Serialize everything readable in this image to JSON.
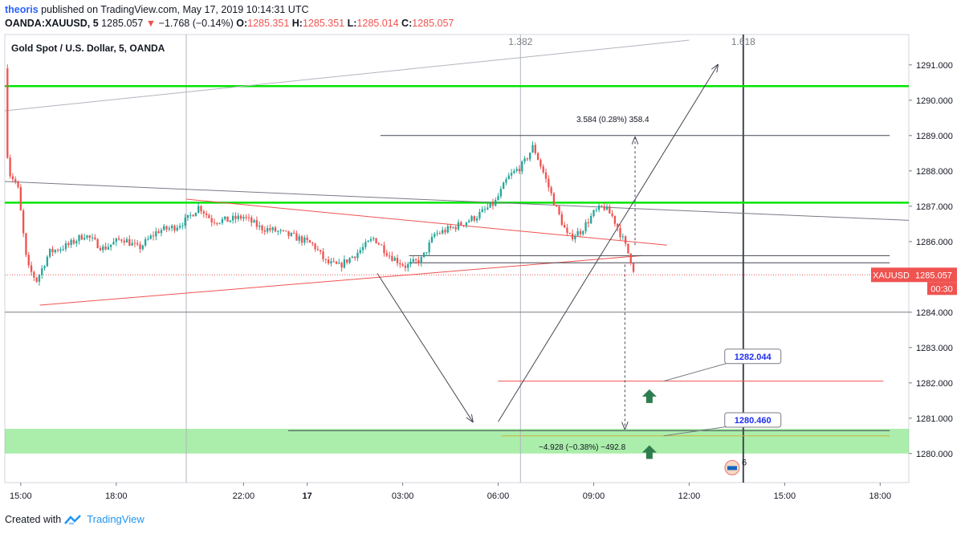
{
  "header": {
    "author": "theoris",
    "published": "published on TradingView.com, May 17, 2019 10:14:31 UTC",
    "symbol": "OANDA:XAUUSD, 5",
    "last": "1285.057",
    "arrow": "▼",
    "change": "−1.768 (−0.14%)",
    "o_label": "O:",
    "o": "1285.351",
    "h_label": "H:",
    "h": "1285.351",
    "l_label": "L:",
    "l": "1285.014",
    "c_label": "C:",
    "c": "1285.057"
  },
  "footer": {
    "created": "Created with",
    "brand": "TradingView"
  },
  "colors": {
    "up": "#26a69a",
    "down": "#ef5350",
    "level": "#00e600",
    "band": "#66e066",
    "tag": "#ef5350",
    "trend": "#ef5350",
    "target": "#2e7d4f"
  },
  "chart_data": {
    "type": "candlestick",
    "title": "Gold Spot / U.S. Dollar, 5, OANDA",
    "price_tag": {
      "symbol": "XAUUSD",
      "value": "1285.057",
      "countdown": "00:30"
    },
    "ylim": [
      1279.2,
      1291.7
    ],
    "y_ticks": [
      "1280.000",
      "1281.000",
      "1282.000",
      "1283.000",
      "1284.000",
      "1285.000",
      "1286.000",
      "1287.000",
      "1288.000",
      "1289.000",
      "1290.000",
      "1291.000"
    ],
    "x_range_hours": [
      14.5,
      42.9
    ],
    "x_ticks": [
      {
        "h": 15,
        "label": "15:00"
      },
      {
        "h": 18,
        "label": "18:00"
      },
      {
        "h": 22,
        "label": "22:00"
      },
      {
        "h": 24,
        "label": "17"
      },
      {
        "h": 27,
        "label": "03:00"
      },
      {
        "h": 30,
        "label": "06:00"
      },
      {
        "h": 33,
        "label": "09:00"
      },
      {
        "h": 36,
        "label": "12:00"
      },
      {
        "h": 39,
        "label": "15:00"
      },
      {
        "h": 42,
        "label": "18:00"
      }
    ],
    "fib_labels": [
      {
        "h": 30.7,
        "label": "1.382"
      },
      {
        "h": 37.7,
        "label": "1.618"
      }
    ],
    "horizontal_levels": [
      1290.4,
      1287.1
    ],
    "support_band": [
      1280.0,
      1280.7
    ],
    "targets": [
      {
        "label": "1282.044",
        "price": 1282.044
      },
      {
        "label": "1280.460",
        "price": 1280.46
      }
    ],
    "measure_up": "3.584 (0.28%) 358.4",
    "measure_down": "−4.928 (−0.38%) −492.8",
    "event_badge": "6",
    "anchors": [
      [
        14.5,
        1290.9
      ],
      [
        14.6,
        1288.0
      ],
      [
        14.9,
        1287.6
      ],
      [
        15.2,
        1285.3
      ],
      [
        15.5,
        1284.9
      ],
      [
        15.9,
        1285.7
      ],
      [
        16.5,
        1285.9
      ],
      [
        17.0,
        1286.2
      ],
      [
        17.6,
        1285.8
      ],
      [
        18.2,
        1286.1
      ],
      [
        18.7,
        1285.8
      ],
      [
        19.3,
        1286.3
      ],
      [
        19.8,
        1286.4
      ],
      [
        20.2,
        1286.6
      ],
      [
        20.6,
        1287.0
      ],
      [
        21.0,
        1286.6
      ],
      [
        21.5,
        1286.6
      ],
      [
        22.0,
        1286.7
      ],
      [
        22.5,
        1286.4
      ],
      [
        23.0,
        1286.3
      ],
      [
        23.7,
        1286.1
      ],
      [
        24.2,
        1285.9
      ],
      [
        24.6,
        1285.4
      ],
      [
        25.0,
        1285.3
      ],
      [
        25.6,
        1285.7
      ],
      [
        26.1,
        1286.1
      ],
      [
        26.6,
        1285.6
      ],
      [
        27.1,
        1285.3
      ],
      [
        27.6,
        1285.5
      ],
      [
        28.0,
        1286.2
      ],
      [
        28.6,
        1286.4
      ],
      [
        29.3,
        1286.7
      ],
      [
        29.9,
        1287.1
      ],
      [
        30.3,
        1287.8
      ],
      [
        30.8,
        1288.2
      ],
      [
        31.1,
        1288.7
      ],
      [
        31.4,
        1288.0
      ],
      [
        31.8,
        1287.0
      ],
      [
        32.2,
        1286.1
      ],
      [
        32.6,
        1286.3
      ],
      [
        33.0,
        1286.8
      ],
      [
        33.3,
        1287.0
      ],
      [
        33.6,
        1286.7
      ],
      [
        33.9,
        1286.1
      ],
      [
        34.2,
        1285.4
      ],
      [
        34.3,
        1285.06
      ]
    ]
  }
}
